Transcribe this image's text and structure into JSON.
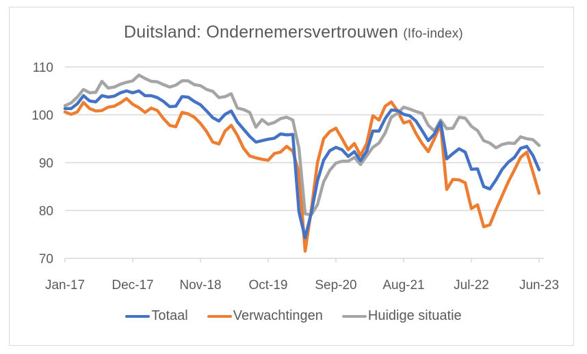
{
  "colors": {
    "totaal": "#4472C4",
    "verwachtingen": "#ED7D31",
    "huidige": "#A5A5A5",
    "grid": "#d9d9d9",
    "text": "#595959"
  },
  "chart_data": {
    "type": "line",
    "title": "Duitsland: Ondernemersvertrouwen",
    "subtitle": "(Ifo-index)",
    "xlabel": "",
    "ylabel": "",
    "ylim": [
      70,
      110
    ],
    "yticks": [
      "70",
      "80",
      "90",
      "100",
      "110"
    ],
    "ytick_values": [
      70,
      80,
      90,
      100,
      110
    ],
    "xtick_labels": [
      "Jan-17",
      "Dec-17",
      "Nov-18",
      "Oct-19",
      "Sep-20",
      "Aug-21",
      "Jul-22",
      "Jun-23"
    ],
    "xtick_month_index": [
      0,
      11,
      22,
      33,
      44,
      55,
      66,
      77
    ],
    "x_start": "Jan-17",
    "x_end": "Jun-23",
    "frequency": "monthly",
    "grid": true,
    "legend_position": "bottom",
    "series": [
      {
        "name": "Totaal",
        "color_key": "totaal",
        "values": [
          101.3,
          101.3,
          102.3,
          104.0,
          102.9,
          102.7,
          104.0,
          103.7,
          103.9,
          104.6,
          105.0,
          104.6,
          105.0,
          104.0,
          104.0,
          103.6,
          102.8,
          101.7,
          101.8,
          103.8,
          103.7,
          102.8,
          102.1,
          100.8,
          99.4,
          98.7,
          100.1,
          100.8,
          98.5,
          97.0,
          95.5,
          94.3,
          94.6,
          94.9,
          95.1,
          96.0,
          95.8,
          95.9,
          79.7,
          74.3,
          79.5,
          86.2,
          90.5,
          92.5,
          93.2,
          92.7,
          91.3,
          92.3,
          90.4,
          92.4,
          96.6,
          96.6,
          99.2,
          101.0,
          100.9,
          100.1,
          99.8,
          98.7,
          96.7,
          94.6,
          96.0,
          98.5,
          90.8,
          91.9,
          92.9,
          92.2,
          88.6,
          88.7,
          85.0,
          84.5,
          86.4,
          88.6,
          90.1,
          91.1,
          93.0,
          93.4,
          91.5,
          88.5
        ]
      },
      {
        "name": "Verwachtingen",
        "color_key": "verwachtingen",
        "values": [
          100.6,
          100.1,
          100.6,
          102.6,
          101.3,
          100.8,
          100.9,
          101.6,
          101.8,
          102.5,
          103.4,
          102.2,
          101.5,
          100.5,
          101.4,
          100.9,
          99.2,
          97.8,
          97.5,
          100.5,
          100.2,
          99.5,
          98.2,
          96.5,
          94.3,
          93.9,
          96.6,
          97.8,
          95.7,
          93.0,
          91.4,
          91.0,
          90.7,
          90.5,
          91.9,
          92.2,
          93.4,
          92.4,
          87.9,
          71.5,
          80.1,
          90.0,
          95.0,
          96.5,
          97.2,
          95.0,
          92.7,
          94.0,
          91.5,
          94.0,
          99.8,
          98.9,
          101.8,
          102.7,
          100.8,
          98.3,
          98.7,
          96.1,
          94.0,
          92.3,
          95.0,
          98.0,
          84.4,
          86.5,
          86.4,
          85.8,
          80.4,
          81.2,
          76.6,
          77.0,
          80.2,
          83.1,
          86.0,
          88.5,
          91.1,
          92.2,
          88.0,
          83.6
        ]
      },
      {
        "name": "Huidige situatie",
        "color_key": "huidige",
        "values": [
          101.9,
          102.5,
          103.7,
          105.3,
          104.6,
          104.7,
          107.0,
          105.6,
          105.8,
          106.4,
          106.8,
          107.1,
          108.3,
          107.6,
          107.0,
          106.9,
          106.3,
          105.8,
          106.2,
          107.1,
          107.1,
          106.3,
          106.1,
          105.3,
          104.9,
          103.6,
          103.8,
          104.4,
          101.4,
          101.1,
          100.5,
          97.4,
          99.0,
          98.0,
          98.4,
          99.2,
          99.5,
          98.9,
          93.0,
          79.3,
          79.1,
          81.2,
          86.0,
          88.4,
          89.9,
          90.3,
          90.3,
          91.1,
          89.6,
          91.4,
          93.2,
          94.1,
          96.2,
          99.5,
          100.3,
          101.6,
          101.2,
          100.7,
          100.3,
          97.8,
          96.6,
          98.9,
          97.1,
          97.2,
          99.5,
          99.3,
          97.6,
          96.7,
          94.6,
          94.1,
          93.1,
          93.8,
          94.1,
          94.0,
          95.4,
          95.0,
          94.8,
          93.6
        ]
      }
    ]
  },
  "legend": [
    {
      "label": "Totaal",
      "color_key": "totaal"
    },
    {
      "label": "Verwachtingen",
      "color_key": "verwachtingen"
    },
    {
      "label": "Huidige situatie",
      "color_key": "huidige"
    }
  ]
}
